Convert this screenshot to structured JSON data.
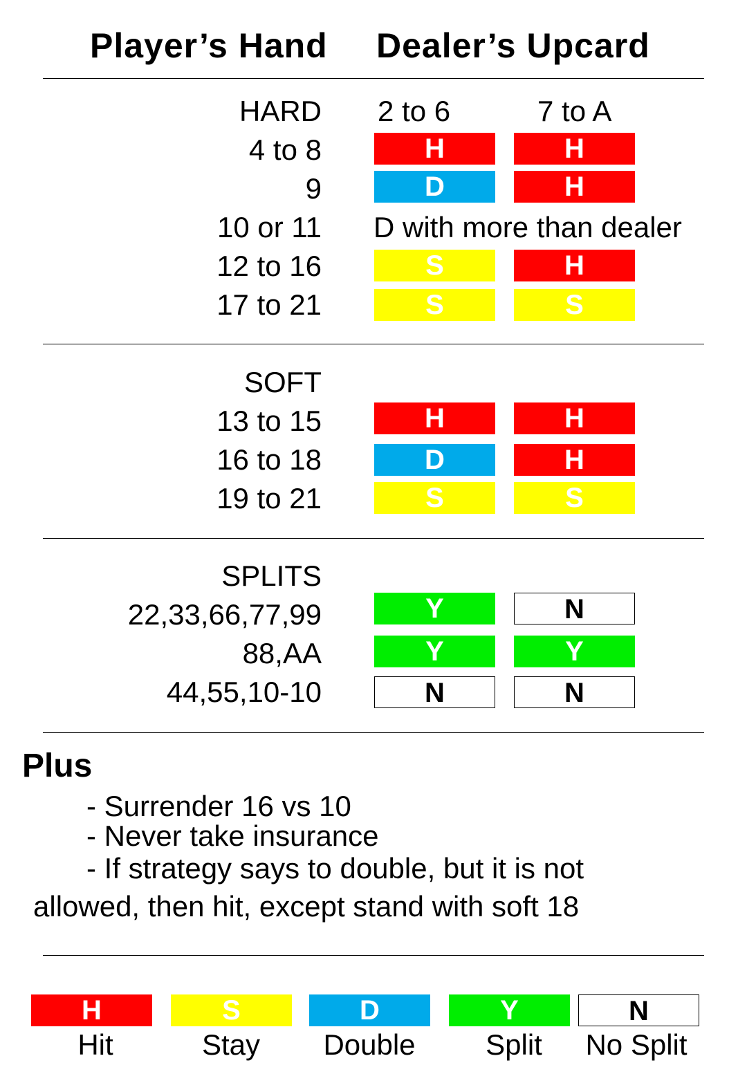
{
  "headers": {
    "player": "Player’s Hand",
    "dealer": "Dealer’s Upcard"
  },
  "colors": {
    "hit": "#ff0000",
    "stay": "#ffff00",
    "double": "#00aaea",
    "split": "#00ee00",
    "no_split": "#ffffff"
  },
  "hard": {
    "title": "HARD",
    "col1": "2 to 6",
    "col2": "7 to A",
    "rows": [
      {
        "label": "4 to 8",
        "c1": "H",
        "c2": "H"
      },
      {
        "label": "9",
        "c1": "D",
        "c2": "H"
      },
      {
        "label": "10 or 11",
        "note": "D with more than dealer"
      },
      {
        "label": "12 to 16",
        "c1": "S",
        "c2": "H"
      },
      {
        "label": "17 to 21",
        "c1": "S",
        "c2": "S"
      }
    ]
  },
  "soft": {
    "title": "SOFT",
    "rows": [
      {
        "label": "13 to 15",
        "c1": "H",
        "c2": "H"
      },
      {
        "label": "16 to 18",
        "c1": "D",
        "c2": "H"
      },
      {
        "label": "19 to 21",
        "c1": "S",
        "c2": "S"
      }
    ]
  },
  "splits": {
    "title": "SPLITS",
    "rows": [
      {
        "label": "22,33,66,77,99",
        "c1": "Y",
        "c2": "N"
      },
      {
        "label": "88,AA",
        "c1": "Y",
        "c2": "Y"
      },
      {
        "label": "44,55,10-10",
        "c1": "N",
        "c2": "N"
      }
    ]
  },
  "plus": {
    "title": "Plus",
    "lines": [
      "- Surrender 16 vs 10",
      "- Never take insurance",
      "- If strategy says to double, but it is not",
      "allowed, then hit, except stand with soft 18"
    ]
  },
  "legend": [
    {
      "code": "H",
      "label": "Hit"
    },
    {
      "code": "S",
      "label": "Stay"
    },
    {
      "code": "D",
      "label": "Double"
    },
    {
      "code": "Y",
      "label": "Split"
    },
    {
      "code": "N",
      "label": "No Split"
    }
  ]
}
